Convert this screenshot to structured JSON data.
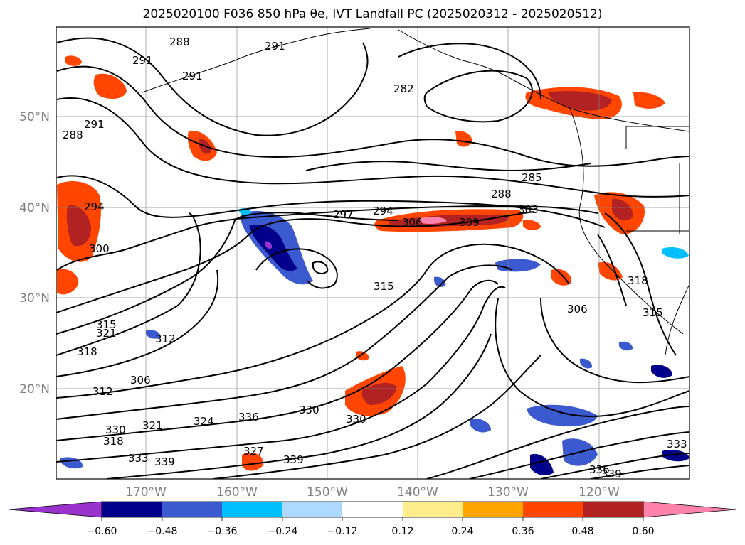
{
  "title": "2025020100 F036 850 hPa θe, IVT Landfall PC (2025020312 - 2025020512)",
  "map": {
    "lat_ticks": [
      "50°N",
      "40°N",
      "30°N",
      "20°N"
    ],
    "lon_ticks": [
      "170°W",
      "160°W",
      "150°W",
      "140°W",
      "130°W",
      "120°W"
    ],
    "grid": true
  },
  "contour_labels": [
    "288",
    "291",
    "291",
    "291",
    "288",
    "291",
    "294",
    "300",
    "282",
    "285",
    "288",
    "297",
    "294",
    "306",
    "309",
    "303",
    "315",
    "306",
    "318",
    "315",
    "312",
    "318",
    "321",
    "315",
    "312",
    "306",
    "324",
    "336",
    "330",
    "330",
    "333",
    "330",
    "327",
    "339",
    "339",
    "336",
    "339",
    "333",
    "318",
    "321"
  ],
  "colorbar": {
    "ticks": [
      "−0.60",
      "−0.48",
      "−0.36",
      "−0.24",
      "−0.12",
      "0.12",
      "0.24",
      "0.36",
      "0.48",
      "0.60"
    ],
    "colors": [
      "#9932cc",
      "#00008b",
      "#3c5ad0",
      "#00bfff",
      "#add8ff",
      "#ffffff",
      "#ffec8b",
      "#ffa500",
      "#ff4500",
      "#b22222",
      "#ff82ab"
    ],
    "extend": "both"
  }
}
